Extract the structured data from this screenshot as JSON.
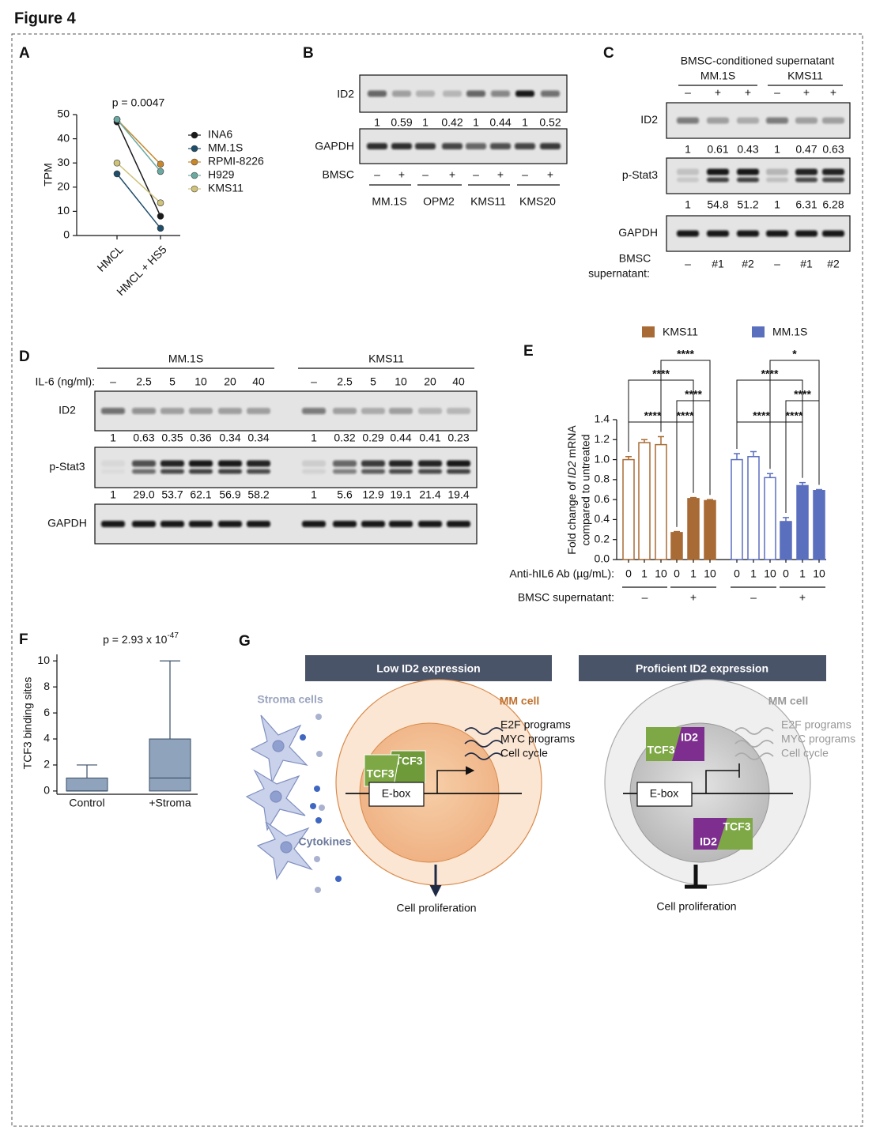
{
  "figure_title": "Figure 4",
  "chart_data": [
    {
      "type": "line",
      "panel": "A",
      "annotation": "p = 0.0047",
      "y_label": "TPM",
      "categories": [
        "HMCL",
        "HMCL + HS5"
      ],
      "series": [
        {
          "name": "INA6",
          "color": "#1a1a1a",
          "values": [
            47,
            8
          ]
        },
        {
          "name": "MM.1S",
          "color": "#1f4e6b",
          "values": [
            25.5,
            3
          ]
        },
        {
          "name": "RPMI-8226",
          "color": "#c8872a",
          "values": [
            48,
            29.5
          ]
        },
        {
          "name": "H929",
          "color": "#6aa9a2",
          "values": [
            48,
            26.5
          ]
        },
        {
          "name": "KMS11",
          "color": "#cfc27a",
          "values": [
            30,
            13.5
          ]
        }
      ],
      "ylim": [
        0,
        50
      ],
      "yticks": [
        0,
        10,
        20,
        30,
        40,
        50
      ]
    },
    {
      "type": "bar",
      "panel": "E",
      "y_label": {
        "line1": [
          "Fold change of ",
          "ID2",
          " mRNA"
        ],
        "line2": "compared to untreated"
      },
      "x_label": "Anti-hIL6 Ab (µg/mL):",
      "categories": [
        "0",
        "1",
        "10",
        "0",
        "1",
        "10"
      ],
      "condition_label": "BMSC supernatant:",
      "conditions": [
        "–",
        "+"
      ],
      "series": [
        {
          "name": "KMS11",
          "color": "#a86b35",
          "values": [
            1.0,
            1.17,
            1.15,
            0.27,
            0.61,
            0.59
          ],
          "errors": [
            0.03,
            0.03,
            0.08,
            0.01,
            0.01,
            0.01
          ],
          "significance": [
            "****",
            "****",
            "****",
            "****",
            "****"
          ]
        },
        {
          "name": "MM.1S",
          "color": "#5b6fbf",
          "values": [
            1.0,
            1.03,
            0.82,
            0.38,
            0.74,
            0.69
          ],
          "errors": [
            0.06,
            0.05,
            0.04,
            0.04,
            0.03,
            0.01
          ],
          "significance": [
            "****",
            "****",
            "****",
            "****",
            "*"
          ]
        }
      ],
      "ylim": [
        0,
        1.4
      ],
      "yticks": [
        {
          "value": 0,
          "label": "0.0"
        },
        0.2,
        0.4,
        0.6,
        0.8,
        {
          "value": 1,
          "label": "1.0"
        },
        1.2,
        1.4
      ]
    },
    {
      "type": "box",
      "panel": "F",
      "annotation": {
        "text": "p = 2.93 x 10",
        "exponent": "-47"
      },
      "y_label": "TCF3 binding sites",
      "categories": [
        "Control",
        "+Stroma"
      ],
      "color": "#8fa3bc",
      "boxes": [
        {
          "min": 0,
          "q1": 0,
          "median": 0,
          "q3": 1,
          "max": 2
        },
        {
          "min": 0,
          "q1": 0,
          "median": 1,
          "q3": 4,
          "max": 10
        }
      ],
      "ylim": [
        -0.25,
        10.5
      ],
      "yticks": [
        0,
        2,
        4,
        6,
        8,
        10
      ]
    }
  ],
  "blots": {
    "B": {
      "panel": "B",
      "rows": [
        {
          "name": "ID2",
          "values": [
            "1",
            "0.59",
            "1",
            "0.42",
            "1",
            "0.44",
            "1",
            "0.52"
          ]
        },
        {
          "name": "GAPDH"
        }
      ],
      "treatment_label": "BMSC",
      "treatments": [
        "–",
        "+",
        "–",
        "+",
        "–",
        "+",
        "–",
        "+"
      ],
      "cell_lines": [
        "MM.1S",
        "OPM2",
        "KMS11",
        "KMS20"
      ]
    },
    "C": {
      "panel": "C",
      "header": "BMSC-conditioned supernatant",
      "groups": [
        "MM.1S",
        "KMS11"
      ],
      "treatments": [
        "–",
        "+",
        "+",
        "–",
        "+",
        "+"
      ],
      "rows": [
        {
          "name": "ID2",
          "values": [
            "1",
            "0.61",
            "0.43",
            "1",
            "0.47",
            "0.63"
          ]
        },
        {
          "name": "p-Stat3",
          "values": [
            "1",
            "54.8",
            "51.2",
            "1",
            "6.31",
            "6.28"
          ]
        },
        {
          "name": "GAPDH"
        }
      ],
      "sample_label": [
        "BMSC",
        "supernatant:"
      ],
      "samples": [
        "–",
        "#1",
        "#2",
        "–",
        "#1",
        "#2"
      ]
    },
    "D": {
      "panel": "D",
      "groups": [
        "MM.1S",
        "KMS11"
      ],
      "treatment_label": "IL-6 (ng/ml):",
      "treatments": [
        "–",
        "2.5",
        "5",
        "10",
        "20",
        "40",
        "–",
        "2.5",
        "5",
        "10",
        "20",
        "40"
      ],
      "rows": [
        {
          "name": "ID2",
          "values": [
            "1",
            "0.63",
            "0.35",
            "0.36",
            "0.34",
            "0.34",
            "1",
            "0.32",
            "0.29",
            "0.44",
            "0.41",
            "0.23"
          ]
        },
        {
          "name": "p-Stat3",
          "values": [
            "1",
            "29.0",
            "53.7",
            "62.1",
            "56.9",
            "58.2",
            "1",
            "5.6",
            "12.9",
            "19.1",
            "21.4",
            "19.4"
          ]
        },
        {
          "name": "GAPDH"
        }
      ]
    }
  },
  "diagram": {
    "panel": "G",
    "left": {
      "header": "Low ID2 expression",
      "stroma_label": "Stroma cells",
      "cytokines_label": "Cytokines",
      "cell_label": "MM cell",
      "programs": [
        "E2F programs",
        "MYC programs",
        "Cell cycle"
      ],
      "proteins": [
        "TCF3",
        "TCF3"
      ],
      "ebox": "E-box",
      "outcome": "Cell proliferation"
    },
    "right": {
      "header": "Proficient ID2 expression",
      "cell_label": "MM cell",
      "programs": [
        "E2F programs",
        "MYC programs",
        "Cell cycle"
      ],
      "complexes": [
        [
          "TCF3",
          "ID2"
        ],
        [
          "ID2",
          "TCF3"
        ]
      ],
      "ebox": "E-box",
      "outcome": "Cell proliferation"
    }
  }
}
